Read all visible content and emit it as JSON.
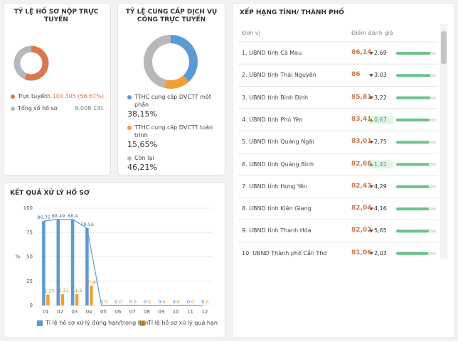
{
  "online_ratio": {
    "title": "TỶ LỆ HỒ SƠ NỘP TRỰC TUYẾN",
    "items": [
      {
        "name": "Trực tuyến",
        "value": 5104305,
        "value_label": "5.104.305 (56.67%)",
        "color": "#d9784f"
      },
      {
        "name": "Tổng số hồ sơ",
        "value": 9008141,
        "value_label": "9.008.141",
        "color": "#b8b8b8"
      }
    ]
  },
  "service_ratio": {
    "title": "TỶ LỆ CUNG CẤP DỊCH VỤ CÔNG TRỰC TUYẾN",
    "items": [
      {
        "name": "TTHC cung cấp DVCTT một phần",
        "value": 38.15,
        "value_label": "38,15%",
        "color": "#5b9bd5"
      },
      {
        "name": "TTHC cung cấp DVCTT toàn trình",
        "value": 15.65,
        "value_label": "15,65%",
        "color": "#f0a035"
      },
      {
        "name": "Còn lại",
        "value": 46.21,
        "value_label": "46,21%",
        "color": "#b8b8b8"
      }
    ]
  },
  "ranking": {
    "title": "XẾP HẠNG TỈNH/ THÀNH PHỐ",
    "columns": [
      "Đơn vị",
      "Điểm đánh giá"
    ],
    "score_range": [
      0,
      100
    ],
    "rows": [
      {
        "name": "1. UBND tỉnh Cà Mau",
        "score": 86.14,
        "score_label": "86,14",
        "change": "2,69",
        "trend": "down"
      },
      {
        "name": "2. UBND tỉnh Thái Nguyên",
        "score": 86,
        "score_label": "86",
        "change": "3,03",
        "trend": "down"
      },
      {
        "name": "3. UBND tỉnh Bình Định",
        "score": 85.81,
        "score_label": "85,81",
        "change": "3,22",
        "trend": "down"
      },
      {
        "name": "4. UBND tỉnh Phú Yên",
        "score": 83.41,
        "score_label": "83,41",
        "change": "0,67",
        "trend": "up"
      },
      {
        "name": "5. UBND tỉnh Quảng Ngãi",
        "score": 83.01,
        "score_label": "83,01",
        "change": "2,75",
        "trend": "down"
      },
      {
        "name": "6. UBND tỉnh Quảng Bình",
        "score": 82.66,
        "score_label": "82,66",
        "change": "1,41",
        "trend": "up"
      },
      {
        "name": "7. UBND tỉnh Hưng Yên",
        "score": 82.43,
        "score_label": "82,43",
        "change": "4,29",
        "trend": "down"
      },
      {
        "name": "8. UBND tỉnh Kiên Giang",
        "score": 82.04,
        "score_label": "82,04",
        "change": "4,16",
        "trend": "down"
      },
      {
        "name": "9. UBND tỉnh Thanh Hóa",
        "score": 82.02,
        "score_label": "82,02",
        "change": "5,65",
        "trend": "down"
      },
      {
        "name": "10. UBND Thành phố Cần Thơ",
        "score": 81.06,
        "score_label": "81,06",
        "change": "2,03",
        "trend": "down"
      }
    ]
  },
  "chart_data": {
    "type": "bar",
    "title": "KẾT QUẢ XỬ LÝ HỒ SƠ",
    "y_label": "%",
    "categories": [
      "01",
      "02",
      "03",
      "04",
      "05",
      "06",
      "07",
      "08",
      "09",
      "10",
      "11",
      "12"
    ],
    "ylim": [
      0,
      100
    ],
    "yticks": [
      0,
      25,
      50,
      75,
      100
    ],
    "grid": true,
    "series": [
      {
        "name": "Tỉ lệ hồ sơ xử lý đúng hạn/trong hạn",
        "color": "#5b9bd5",
        "line": true,
        "values": [
          86.75,
          88.49,
          88.4,
          79.56,
          0,
          0,
          0,
          0,
          0,
          0,
          0,
          0
        ]
      },
      {
        "name": "Tỉ lệ hồ sơ xử lý quá hạn",
        "color": "#f0a035",
        "values": [
          11.25,
          11.51,
          11.6,
          20.44,
          0,
          0,
          0,
          0,
          0,
          0,
          0,
          0
        ]
      }
    ]
  }
}
